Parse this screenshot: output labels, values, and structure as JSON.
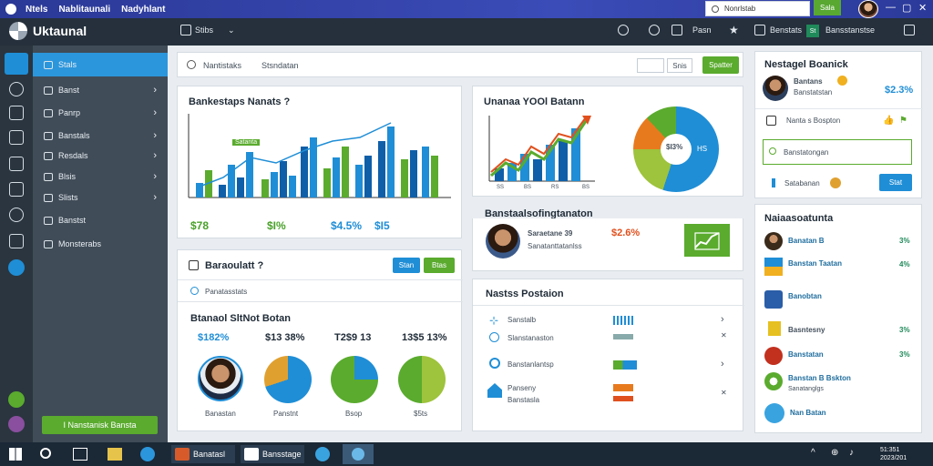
{
  "titlebar": {
    "app_name": "Ntels",
    "window_title": "Nablitaunali",
    "subtitle": "Nadyhlant",
    "search_placeholder": "Nonrlstab",
    "go_label": "Sala",
    "controls": [
      "—",
      "▢",
      "✕"
    ]
  },
  "header": {
    "logo_text": "Uktaunal",
    "menu_label": "Stibs",
    "actions": [
      "Pasn",
      "Benstats"
    ],
    "badge_label": "St",
    "right_label": "Bansstanstse",
    "icons": [
      "refresh-icon",
      "clock-icon",
      "list-icon",
      "star-icon",
      "save-icon",
      "window-icon"
    ]
  },
  "sidebar": {
    "items": [
      {
        "label": "Stals",
        "active": true
      },
      {
        "label": "Banst",
        "active": false
      },
      {
        "label": "Panrp",
        "active": false
      },
      {
        "label": "Banstals",
        "active": false
      },
      {
        "label": "Resdals",
        "active": false
      },
      {
        "label": "Blsis",
        "active": false
      },
      {
        "label": "Slists",
        "active": false
      },
      {
        "label": "Banstst",
        "active": false
      },
      {
        "label": "Monsterabs",
        "active": false
      }
    ],
    "cta_label": "I Nanstanisk Bansta"
  },
  "toolbar": {
    "search_placeholder": "Nantistaks",
    "search_value": "Stsndatan",
    "view_icon": "grid-icon",
    "sort_label": "Snis",
    "primary_label": "Spatter"
  },
  "revenue_card": {
    "title": "Bankestaps Nanats ?",
    "chart_tag": "Satanta",
    "stats": [
      "$78",
      "$I%",
      "$4.5%",
      "$I5"
    ],
    "stat_colors": [
      "#4aa12b",
      "#4aa12b",
      "#1f8ed6",
      "#1f8ed6"
    ]
  },
  "trend_card": {
    "title": "Unanaa YOOl Batann",
    "ticks": [
      "SS",
      "BS",
      "RS",
      "BS"
    ],
    "donut_center": "$I3%",
    "donut_label": "HS"
  },
  "profile_card": {
    "heading": "Banstaalsofingtanaton",
    "name": "Saraetane 39",
    "role": "Sanatanttatanlss",
    "percent": "$2.6%"
  },
  "status_list": {
    "title": "Nastss Postaion",
    "rows": [
      {
        "icon": "network-icon",
        "label": "Sanstalb",
        "bar": "bar-high"
      },
      {
        "icon": "circle-icon",
        "label": "Slanstanaston",
        "bar": "bar-low"
      },
      {
        "icon": "target-icon",
        "label": "Banstanlantsp",
        "bar": "bar-mid"
      },
      {
        "icon": "home-icon",
        "label": "Panseny",
        "sub": "Banstasla",
        "bar": "bar-warn"
      }
    ]
  },
  "team_card": {
    "title": "Baraoulatt ?",
    "buttons": [
      "Stan",
      "Btas"
    ],
    "subtitle": "Panatasstats",
    "section_title": "Btanaol SltNot Botan",
    "columns": [
      {
        "value": "$182%",
        "name": "Banastan",
        "fill": 0.82
      },
      {
        "value": "$13 38%",
        "name": "Panstnt",
        "fill": 0.6
      },
      {
        "value": "T2$9 13",
        "name": "Bsop",
        "fill": 0.3
      },
      {
        "value": "13$5 13%",
        "name": "$5ts",
        "fill": 0.5
      }
    ]
  },
  "right_top": {
    "title": "Nestagel Boanick",
    "user_name": "Bantans",
    "user_sub": "Banstatstan",
    "user_value": "$2.3%",
    "line2_label": "Nanta s Bospton",
    "line2_value": "",
    "input_placeholder": "Banstatongan",
    "pill_label": "Satabanan",
    "apply_label": "Stat"
  },
  "right_list": {
    "title": "Naiaasoatunta",
    "rows": [
      {
        "label": "Banatan B",
        "sub": "",
        "value": "3%",
        "avatar": "avatar-person"
      },
      {
        "label": "Banstan Taatan",
        "sub": "",
        "value": "4%",
        "avatar": "avatar-id"
      },
      {
        "label": "Banobtan",
        "sub": "",
        "value": "",
        "avatar": "avatar-badge"
      },
      {
        "label": "Basntesny",
        "sub": "",
        "value": "3%",
        "avatar": "avatar-lemon"
      },
      {
        "label": "Banstatan",
        "sub": "",
        "value": "3%",
        "avatar": "avatar-red"
      },
      {
        "label": "Banstan B Bskton",
        "sub": "Sanatanglgs",
        "value": "",
        "avatar": "avatar-leaf"
      },
      {
        "label": "Nan Batan",
        "sub": "",
        "value": "",
        "avatar": "avatar-blue"
      }
    ]
  },
  "taskbar": {
    "apps": [
      "Banatasl",
      "Bansstage"
    ],
    "time": "51:351\n2023/201",
    "tray": [
      "^",
      "⊕",
      "♪"
    ]
  },
  "colors": {
    "primary_blue": "#1f8ed6",
    "green": "#5aab2e",
    "sidebar": "#404c58",
    "rail": "#2a353f",
    "header": "#25303c"
  }
}
